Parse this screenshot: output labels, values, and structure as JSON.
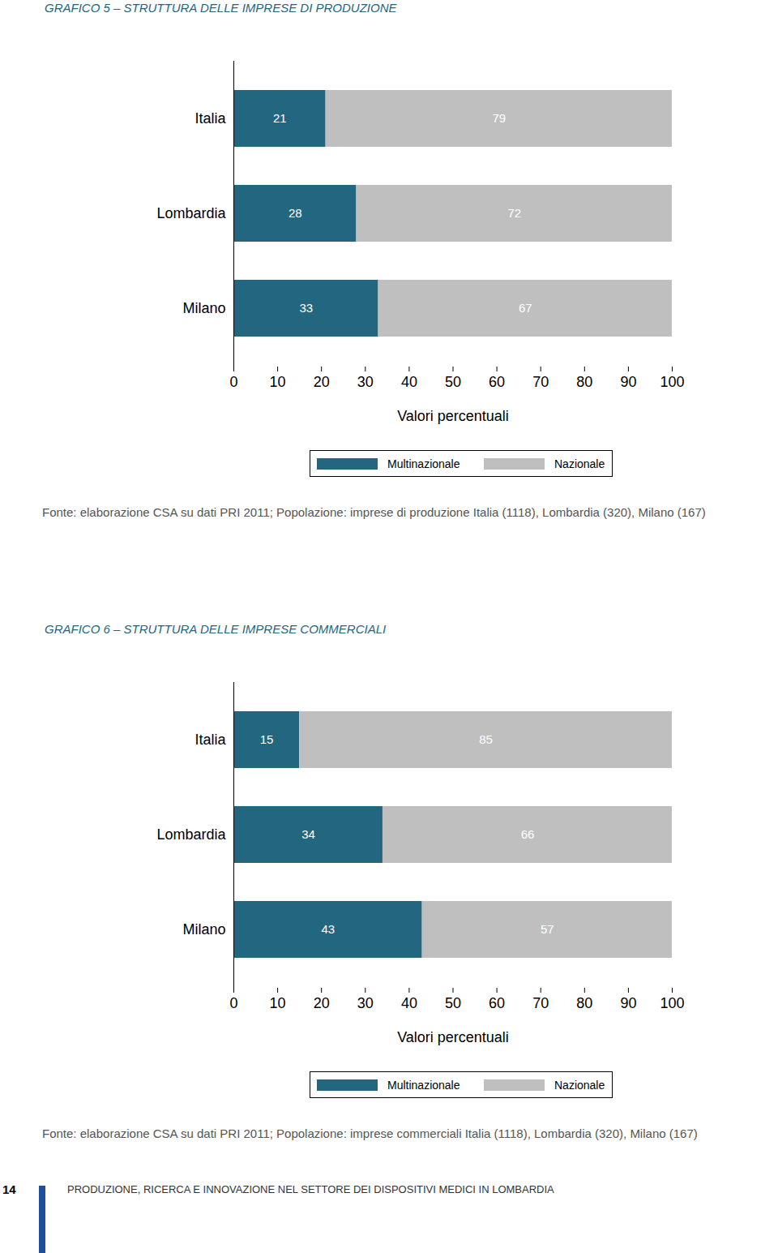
{
  "page": {
    "page_number": "14",
    "footer": "PRODUZIONE, RICERCA E INNOVAZIONE NEL SETTORE DEI DISPOSITIVI MEDICI IN LOMBARDIA"
  },
  "chart_data": [
    {
      "type": "bar",
      "title": "GRAFICO 5 – STRUTTURA DELLE IMPRESE DI PRODUZIONE",
      "orientation": "horizontal",
      "stacked": true,
      "data_labels": true,
      "categories": [
        "Italia",
        "Lombardia",
        "Milano"
      ],
      "series": [
        {
          "name": "Multinazionale",
          "color": "#22677f",
          "values": [
            21,
            28,
            33
          ]
        },
        {
          "name": "Nazionale",
          "color": "#bfbfbf",
          "values": [
            79,
            72,
            67
          ]
        }
      ],
      "xlim": [
        0,
        100
      ],
      "xticks": [
        0,
        10,
        20,
        30,
        40,
        50,
        60,
        70,
        80,
        90,
        100
      ],
      "xlabel": "Valori percentuali",
      "legend": "bottom",
      "source": "Fonte: elaborazione CSA su dati PRI 2011; Popolazione: imprese di produzione Italia (1118), Lombardia (320), Milano (167)"
    },
    {
      "type": "bar",
      "title": "GRAFICO 6 – STRUTTURA DELLE IMPRESE COMMERCIALI",
      "orientation": "horizontal",
      "stacked": true,
      "data_labels": true,
      "categories": [
        "Italia",
        "Lombardia",
        "Milano"
      ],
      "series": [
        {
          "name": "Multinazionale",
          "color": "#22677f",
          "values": [
            15,
            34,
            43
          ]
        },
        {
          "name": "Nazionale",
          "color": "#bfbfbf",
          "values": [
            85,
            66,
            57
          ]
        }
      ],
      "xlim": [
        0,
        100
      ],
      "xticks": [
        0,
        10,
        20,
        30,
        40,
        50,
        60,
        70,
        80,
        90,
        100
      ],
      "xlabel": "Valori percentuali",
      "legend": "bottom",
      "source": "Fonte: elaborazione CSA su dati PRI 2011; Popolazione: imprese commerciali Italia (1118), Lombardia (320), Milano (167)"
    }
  ]
}
